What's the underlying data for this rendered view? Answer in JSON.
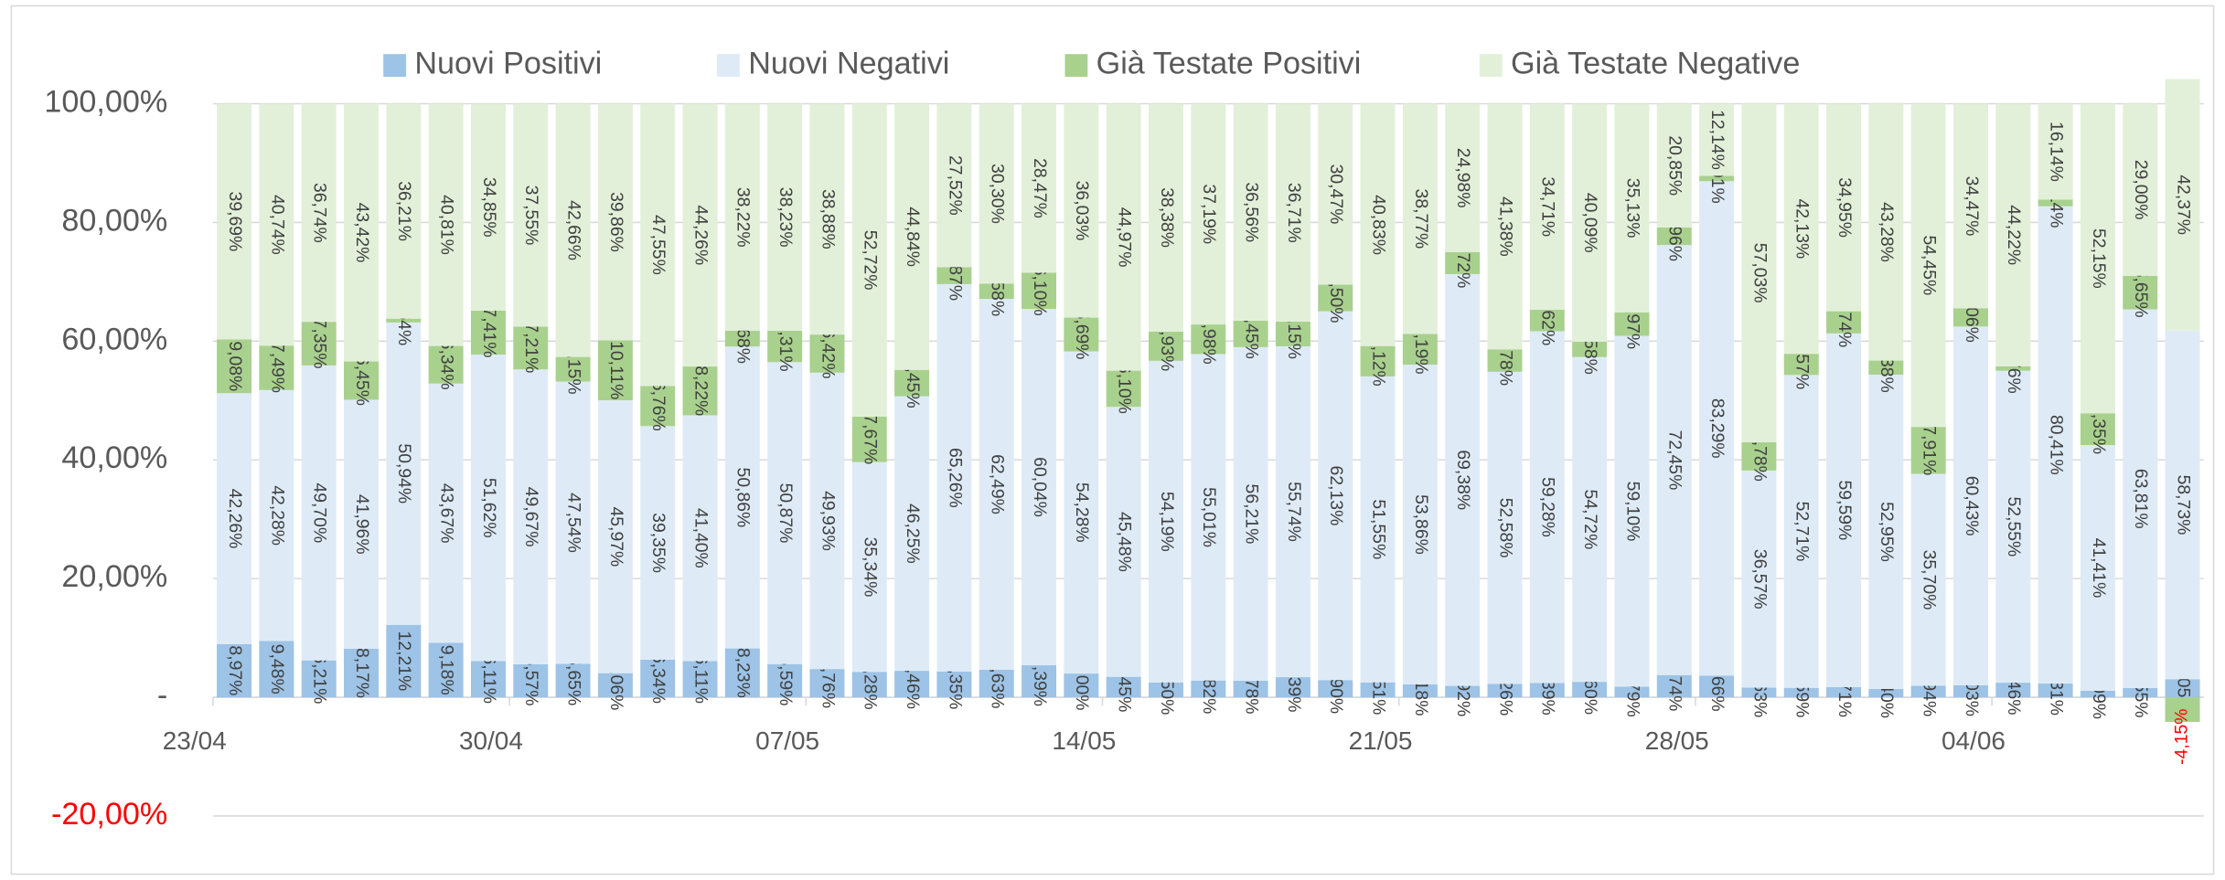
{
  "chart_data": {
    "type": "stacked_bar",
    "categories": [
      "23/04",
      null,
      null,
      null,
      null,
      null,
      null,
      "30/04",
      null,
      null,
      null,
      null,
      null,
      null,
      "07/05",
      null,
      null,
      null,
      null,
      null,
      null,
      "14/05",
      null,
      null,
      null,
      null,
      null,
      null,
      "21/05",
      null,
      null,
      null,
      null,
      null,
      null,
      "28/05",
      null,
      null,
      null,
      null,
      null,
      null,
      "04/06",
      null,
      null,
      null,
      null
    ],
    "series": [
      {
        "name": "Nuovi Positivi",
        "color": "#9dc3e6",
        "values": [
          8.97,
          9.48,
          6.21,
          8.17,
          12.21,
          9.18,
          6.11,
          5.57,
          5.65,
          4.06,
          6.34,
          6.11,
          8.23,
          5.59,
          4.76,
          4.28,
          4.46,
          4.35,
          4.63,
          5.39,
          4.0,
          3.45,
          2.5,
          2.82,
          2.78,
          3.39,
          2.9,
          2.51,
          2.18,
          1.92,
          2.26,
          2.39,
          2.6,
          1.79,
          3.74,
          3.66,
          1.63,
          1.59,
          1.71,
          1.4,
          1.94,
          2.03,
          2.46,
          2.31,
          1.09,
          1.55,
          3.05
        ],
        "value_labels": [
          "8,97%",
          "9,48%",
          "6,21%",
          "8,17%",
          "12,21%",
          "9,18%",
          "6,11%",
          "5,57%",
          "5,65%",
          "4,06%",
          "6,34%",
          "6,11%",
          "8,23%",
          "5,59%",
          "4,76%",
          "4,28%",
          "4,46%",
          "4,35%",
          "4,63%",
          "5,39%",
          "4,00%",
          "3,45%",
          "2,50%",
          "2,82%",
          "2,78%",
          "3,39%",
          "2,90%",
          "2,51%",
          "2,18%",
          "1,92%",
          "2,26%",
          "2,39%",
          "2,60%",
          "1,79%",
          "3,74%",
          "3,66%",
          "1,63%",
          "1,59%",
          "1,71%",
          "1,40%",
          "1,94%",
          "2,03%",
          "2,46%",
          "2,31%",
          "1,09%",
          "1,55%",
          "3,05%"
        ]
      },
      {
        "name": "Nuovi Negativi",
        "color": "#deebf7",
        "values": [
          42.26,
          42.28,
          49.7,
          41.96,
          50.94,
          43.67,
          51.62,
          49.67,
          47.54,
          45.97,
          39.35,
          41.4,
          50.86,
          50.87,
          49.93,
          35.34,
          46.25,
          65.26,
          62.49,
          60.04,
          54.28,
          45.48,
          54.19,
          55.01,
          56.21,
          55.74,
          62.13,
          51.55,
          53.86,
          69.38,
          52.58,
          59.28,
          54.72,
          59.1,
          72.45,
          83.29,
          36.57,
          52.71,
          59.59,
          52.95,
          35.7,
          60.43,
          52.55,
          80.41,
          41.41,
          63.81,
          58.73
        ],
        "value_labels": [
          "42,26%",
          "42,28%",
          "49,70%",
          "41,96%",
          "50,94%",
          "43,67%",
          "51,62%",
          "49,67%",
          "47,54%",
          "45,97%",
          "39,35%",
          "41,40%",
          "50,86%",
          "50,87%",
          "49,93%",
          "35,34%",
          "46,25%",
          "65,26%",
          "62,49%",
          "60,04%",
          "54,28%",
          "45,48%",
          "54,19%",
          "55,01%",
          "56,21%",
          "55,74%",
          "62,13%",
          "51,55%",
          "53,86%",
          "69,38%",
          "52,58%",
          "59,28%",
          "54,72%",
          "59,10%",
          "72,45%",
          "83,29%",
          "36,57%",
          "52,71%",
          "59,59%",
          "52,95%",
          "35,70%",
          "60,43%",
          "52,55%",
          "80,41%",
          "41,41%",
          "63,81%",
          "58,73%"
        ]
      },
      {
        "name": "Già Testate Positivi",
        "color": "#a9d18e",
        "values": [
          9.08,
          7.49,
          7.35,
          6.45,
          0.64,
          6.34,
          7.41,
          7.21,
          4.15,
          10.11,
          6.76,
          8.22,
          2.68,
          5.31,
          6.42,
          7.67,
          4.45,
          2.87,
          2.58,
          6.1,
          5.69,
          6.1,
          4.93,
          4.98,
          4.45,
          4.15,
          4.5,
          5.12,
          5.19,
          3.72,
          3.78,
          3.62,
          2.58,
          3.97,
          2.96,
          0.91,
          4.78,
          3.57,
          3.74,
          2.38,
          7.91,
          3.06,
          0.76,
          1.14,
          5.35,
          5.65,
          -4.15
        ],
        "value_labels": [
          "9,08%",
          "7,49%",
          "7,35%",
          "6,45%",
          "0,64%",
          "6,34%",
          "7,41%",
          "7,21%",
          "4,15%",
          "10,11%",
          "6,76%",
          "8,22%",
          "2,68%",
          "5,31%",
          "6,42%",
          "7,67%",
          "4,45%",
          "2,87%",
          "2,58%",
          "6,10%",
          "5,69%",
          "6,10%",
          "4,93%",
          "4,98%",
          "4,45%",
          "4,15%",
          "4,50%",
          "5,12%",
          "5,19%",
          "3,72%",
          "3,78%",
          "3,62%",
          "2,58%",
          "3,97%",
          "2,96%",
          "0,91%",
          "4,78%",
          "3,57%",
          "3,74%",
          "2,38%",
          "7,91%",
          "3,06%",
          "0,76%",
          "1,14%",
          "5,35%",
          "5,65%",
          "-4,15%"
        ]
      },
      {
        "name": "Già Testate Negative",
        "color": "#e2f0d9",
        "values": [
          39.69,
          40.74,
          36.74,
          43.42,
          36.21,
          40.81,
          34.85,
          37.55,
          42.66,
          39.86,
          47.55,
          44.26,
          38.22,
          38.23,
          38.88,
          52.72,
          44.84,
          27.52,
          30.3,
          28.47,
          36.03,
          44.97,
          38.38,
          37.19,
          36.56,
          36.71,
          30.47,
          40.83,
          38.77,
          24.98,
          41.38,
          34.71,
          40.09,
          35.13,
          20.85,
          12.14,
          57.03,
          42.13,
          34.95,
          43.28,
          54.45,
          34.47,
          44.22,
          16.14,
          52.15,
          29.0,
          42.37
        ],
        "value_labels": [
          "39,69%",
          "40,74%",
          "36,74%",
          "43,42%",
          "36,21%",
          "40,81%",
          "34,85%",
          "37,55%",
          "42,66%",
          "39,86%",
          "47,55%",
          "44,26%",
          "38,22%",
          "38,23%",
          "38,88%",
          "52,72%",
          "44,84%",
          "27,52%",
          "30,30%",
          "28,47%",
          "36,03%",
          "44,97%",
          "38,38%",
          "37,19%",
          "36,56%",
          "36,71%",
          "30,47%",
          "40,83%",
          "38,77%",
          "24,98%",
          "41,38%",
          "34,71%",
          "40,09%",
          "35,13%",
          "20,85%",
          "12,14%",
          "57,03%",
          "42,13%",
          "34,95%",
          "43,28%",
          "54,45%",
          "34,47%",
          "44,22%",
          "16,14%",
          "52,15%",
          "29,00%",
          "42,37%"
        ]
      }
    ],
    "ylim": [
      -20,
      100
    ],
    "yticks": [
      {
        "value": -20,
        "label": "-20,00%"
      },
      {
        "value": 0,
        "label": "-"
      },
      {
        "value": 20,
        "label": "20,00%"
      },
      {
        "value": 40,
        "label": "40,00%"
      },
      {
        "value": 60,
        "label": "60,00%"
      },
      {
        "value": 80,
        "label": "80,00%"
      },
      {
        "value": 100,
        "label": "100,00%"
      }
    ],
    "grid": true,
    "legend": "top",
    "negative_color": "#ff0000"
  }
}
